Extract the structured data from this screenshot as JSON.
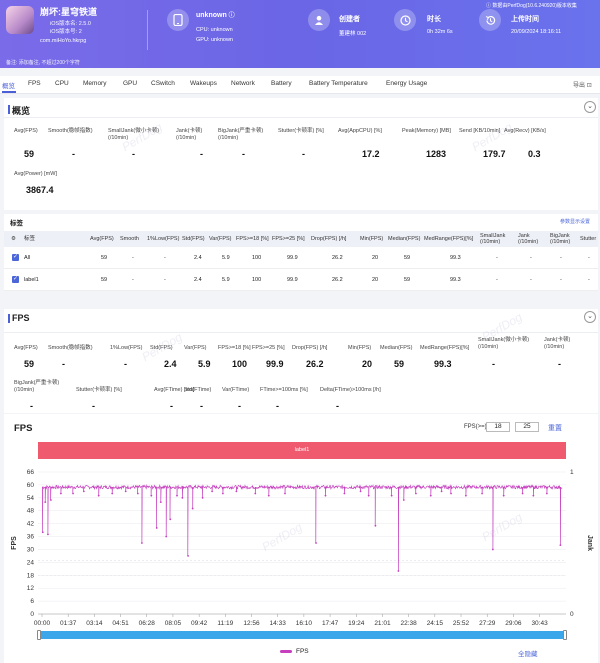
{
  "header": {
    "app_name": "崩坏:星穹铁道",
    "ios_version": "iOS版本名: 2.5.0",
    "ios_code": "iOS版本号: 2",
    "package": "com.miHoYo.hkrpg",
    "device_name": "unknown",
    "cpu": "CPU: unknown",
    "gpu": "GPU: unknown",
    "creator_label": "创建者",
    "creator_value": "董建林 002",
    "duration_label": "时长",
    "duration_value": "0h 32m 6s",
    "upload_label": "上传时间",
    "upload_value": "20/09/2024 18:16:11",
    "version_note": "数据由PerfDog(10.6.240920)版本收集",
    "note": "备注: 添加备注, 不超过200个字符"
  },
  "tabs": [
    "概览",
    "FPS",
    "CPU",
    "Memory",
    "GPU",
    "CSwitch",
    "Wakeups",
    "Network",
    "Battery",
    "Battery Temperature",
    "Energy Usage"
  ],
  "export_label": "导出",
  "overview": {
    "title": "概览",
    "metrics_row1": [
      {
        "label": "Avg(FPS)",
        "value": "59"
      },
      {
        "label": "Smooth(稳帧指数)",
        "value": "-"
      },
      {
        "label": "SmallJank(微小卡顿)\n(/10min)",
        "value": "-"
      },
      {
        "label": "Jank(卡顿)\n(/10min)",
        "value": "-"
      },
      {
        "label": "BigJank(严重卡顿)\n(/10min)",
        "value": "-"
      },
      {
        "label": "Stutter(卡顿率) [%]",
        "value": "-"
      },
      {
        "label": "Avg(AppCPU) [%]",
        "value": "17.2"
      },
      {
        "label": "Peak(Memory) [MB]",
        "value": "1283"
      },
      {
        "label": "Send [KB/10min]",
        "value": "179.7"
      },
      {
        "label": "Avg(Recv) [KB/s]",
        "value": "0.3"
      }
    ],
    "metrics_row2": [
      {
        "label": "Avg(Power) [mW]",
        "value": "3867.4"
      }
    ]
  },
  "labels_table": {
    "title": "标签",
    "settings_link": "参数显示设置",
    "columns": [
      "标签",
      "Avg(FPS)",
      "Smooth",
      "1%Low(FPS)",
      "Std(FPS)",
      "Var(FPS)",
      "FPS>=18 [%]",
      "FPS>=25 [%]",
      "Drop(FPS) [/h]",
      "Min(FPS)",
      "Median(FPS)",
      "MedRange(FPS)[%]",
      "SmallJank\n(/10min)",
      "Jank\n(/10min)",
      "BigJank\n(/10min)",
      "Stutter"
    ],
    "rows": [
      {
        "label": "All",
        "cells": [
          "59",
          "-",
          "-",
          "2.4",
          "5.9",
          "100",
          "99.9",
          "26.2",
          "20",
          "59",
          "99.3",
          "-",
          "-",
          "-",
          "-"
        ]
      },
      {
        "label": "label1",
        "cells": [
          "59",
          "-",
          "-",
          "2.4",
          "5.9",
          "100",
          "99.9",
          "26.2",
          "20",
          "59",
          "99.3",
          "-",
          "-",
          "-",
          "-"
        ]
      }
    ]
  },
  "fps_section": {
    "title": "FPS",
    "metrics_row1": [
      {
        "label": "Avg(FPS)",
        "value": "59"
      },
      {
        "label": "Smooth(稳帧指数)",
        "value": "-"
      },
      {
        "label": "1%Low(FPS)",
        "value": "-"
      },
      {
        "label": "Std(FPS)",
        "value": "2.4"
      },
      {
        "label": "Var(FPS)",
        "value": "5.9"
      },
      {
        "label": "FPS>=18 [%]",
        "value": "100"
      },
      {
        "label": "FPS>=25 [%]",
        "value": "99.9"
      },
      {
        "label": "Drop(FPS) [/h]",
        "value": "26.2"
      },
      {
        "label": "Min(FPS)",
        "value": "20"
      },
      {
        "label": "Median(FPS)",
        "value": "59"
      },
      {
        "label": "MedRange(FPS)[%]",
        "value": "99.3"
      },
      {
        "label": "SmallJank(微小卡顿)\n(/10min)",
        "value": "-"
      },
      {
        "label": "Jank(卡顿)\n(/10min)",
        "value": "-"
      }
    ],
    "metrics_row2": [
      {
        "label": "BigJank(严重卡顿)\n(/10min)",
        "value": "-"
      },
      {
        "label": "Stutter(卡顿率) [%]",
        "value": "-"
      },
      {
        "label": "Avg(FTime) [ms]",
        "value": "-"
      },
      {
        "label": "Std(FTime)",
        "value": "-"
      },
      {
        "label": "Var(FTime)",
        "value": "-"
      },
      {
        "label": "FTime>=100ms [%]",
        "value": "-"
      },
      {
        "label": "Delta(FTime)>100ms [/h]",
        "value": "-"
      }
    ]
  },
  "fps_chart": {
    "title": "FPS",
    "fps_threshold_label": "FPS(>=)",
    "threshold1": "18",
    "threshold2": "25",
    "reset_label": "重置",
    "label_bar": "label1",
    "legend_label": "FPS",
    "hide_all_label": "全隐藏",
    "watermark": "PerfDog"
  },
  "chart_data": {
    "type": "line",
    "title": "FPS",
    "ylabel": "FPS",
    "y2label": "Jank",
    "ylim": [
      0,
      66
    ],
    "y2lim": [
      0,
      1
    ],
    "yticks": [
      0,
      6,
      12,
      18,
      24,
      30,
      36,
      42,
      48,
      54,
      60,
      66
    ],
    "y2ticks": [
      0,
      1
    ],
    "xticks": [
      "00:00",
      "01:37",
      "03:14",
      "04:51",
      "06:28",
      "08:05",
      "09:42",
      "11:19",
      "12:56",
      "14:33",
      "16:10",
      "17:47",
      "19:24",
      "21:01",
      "22:38",
      "24:15",
      "25:52",
      "27:29",
      "29:06",
      "30:43"
    ],
    "baseline_fps": 59,
    "dips": [
      {
        "t": "00:03",
        "fps": 38
      },
      {
        "t": "00:12",
        "fps": 52
      },
      {
        "t": "00:22",
        "fps": 37
      },
      {
        "t": "00:33",
        "fps": 53
      },
      {
        "t": "01:10",
        "fps": 56
      },
      {
        "t": "01:55",
        "fps": 56
      },
      {
        "t": "02:35",
        "fps": 57
      },
      {
        "t": "03:30",
        "fps": 55
      },
      {
        "t": "04:20",
        "fps": 56
      },
      {
        "t": "05:10",
        "fps": 57
      },
      {
        "t": "05:55",
        "fps": 56
      },
      {
        "t": "06:10",
        "fps": 33
      },
      {
        "t": "06:45",
        "fps": 55
      },
      {
        "t": "07:05",
        "fps": 40
      },
      {
        "t": "07:20",
        "fps": 52
      },
      {
        "t": "07:40",
        "fps": 36
      },
      {
        "t": "07:55",
        "fps": 44
      },
      {
        "t": "08:20",
        "fps": 55
      },
      {
        "t": "08:40",
        "fps": 54
      },
      {
        "t": "09:01",
        "fps": 27
      },
      {
        "t": "09:18",
        "fps": 49
      },
      {
        "t": "09:55",
        "fps": 54
      },
      {
        "t": "10:30",
        "fps": 57
      },
      {
        "t": "11:10",
        "fps": 56
      },
      {
        "t": "12:00",
        "fps": 57
      },
      {
        "t": "13:10",
        "fps": 56
      },
      {
        "t": "14:00",
        "fps": 55
      },
      {
        "t": "15:00",
        "fps": 56
      },
      {
        "t": "16:55",
        "fps": 33
      },
      {
        "t": "17:30",
        "fps": 55
      },
      {
        "t": "18:40",
        "fps": 56
      },
      {
        "t": "19:40",
        "fps": 57
      },
      {
        "t": "20:10",
        "fps": 55
      },
      {
        "t": "20:35",
        "fps": 41
      },
      {
        "t": "21:35",
        "fps": 55
      },
      {
        "t": "22:00",
        "fps": 20
      },
      {
        "t": "22:20",
        "fps": 53
      },
      {
        "t": "23:05",
        "fps": 56
      },
      {
        "t": "24:00",
        "fps": 55
      },
      {
        "t": "24:40",
        "fps": 57
      },
      {
        "t": "25:15",
        "fps": 56
      },
      {
        "t": "26:10",
        "fps": 55
      },
      {
        "t": "27:10",
        "fps": 56
      },
      {
        "t": "27:50",
        "fps": 30
      },
      {
        "t": "28:30",
        "fps": 55
      },
      {
        "t": "29:40",
        "fps": 56
      },
      {
        "t": "30:20",
        "fps": 55
      },
      {
        "t": "31:10",
        "fps": 56
      },
      {
        "t": "32:00",
        "fps": 32
      }
    ],
    "series": [
      {
        "name": "FPS",
        "color": "#c53fbe"
      }
    ],
    "colors": {
      "line": "#c53fbe",
      "label_bar": "#f05a6e",
      "scroll": "#3ba6ea",
      "accent": "#4b5fd6"
    }
  }
}
